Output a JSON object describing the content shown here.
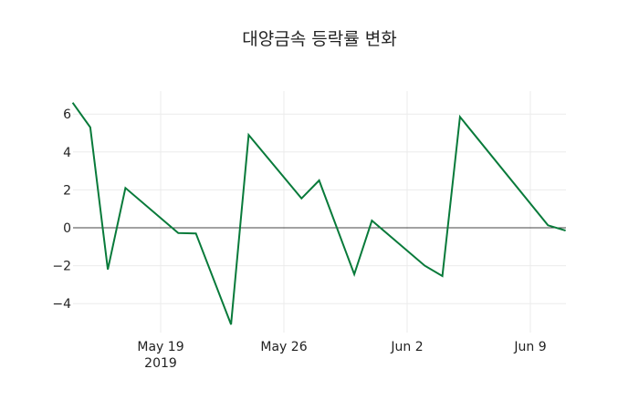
{
  "chart_data": {
    "type": "line",
    "title": "대양금속 등락률 변화",
    "xlabel": "",
    "ylabel": "",
    "x": [
      "2019-05-14",
      "2019-05-15",
      "2019-05-16",
      "2019-05-17",
      "2019-05-20",
      "2019-05-21",
      "2019-05-23",
      "2019-05-24",
      "2019-05-27",
      "2019-05-28",
      "2019-05-30",
      "2019-05-31",
      "2019-06-03",
      "2019-06-04",
      "2019-06-05",
      "2019-06-10",
      "2019-06-11"
    ],
    "series": [
      {
        "name": "등락률",
        "color": "#087a3a",
        "values": [
          6.6,
          5.3,
          -2.2,
          2.1,
          -0.28,
          -0.3,
          -5.1,
          4.9,
          1.55,
          2.5,
          -2.45,
          0.38,
          -2.0,
          -2.55,
          5.85,
          0.13,
          -0.15
        ]
      }
    ],
    "x_ticks": [
      {
        "label": "May 19",
        "sublabel": "2019",
        "date": "2019-05-19"
      },
      {
        "label": "May 26",
        "sublabel": "",
        "date": "2019-05-26"
      },
      {
        "label": "Jun 2",
        "sublabel": "",
        "date": "2019-06-02"
      },
      {
        "label": "Jun 9",
        "sublabel": "",
        "date": "2019-06-09"
      }
    ],
    "y_ticks": [
      "6",
      "4",
      "2",
      "0",
      "−2",
      "−4"
    ],
    "y_tick_values": [
      6,
      4,
      2,
      0,
      -2,
      -4
    ],
    "ylim": [
      -5.5,
      7.2
    ],
    "grid": true,
    "legend": null
  }
}
